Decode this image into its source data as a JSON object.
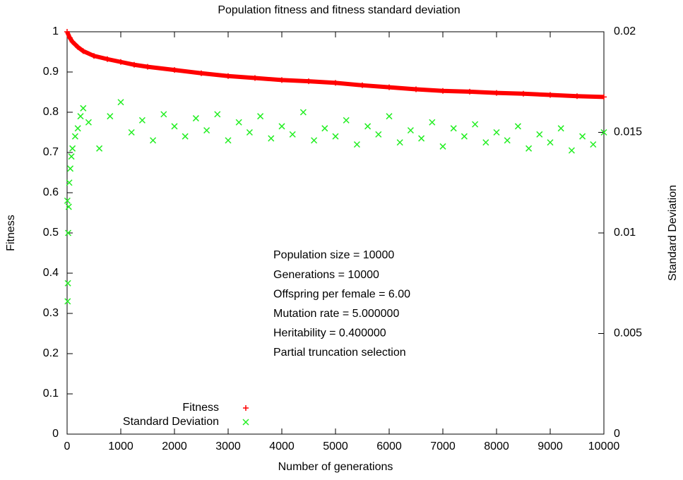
{
  "chart_data": {
    "type": "scatter",
    "title": "Population fitness and fitness standard deviation",
    "x_label": "Number of generations",
    "y_label": "Fitness",
    "y2_label": "Standard Deviation",
    "xlim": [
      0,
      10000
    ],
    "xticks": [
      0,
      1000,
      2000,
      3000,
      4000,
      5000,
      6000,
      7000,
      8000,
      9000,
      10000
    ],
    "ylim": [
      0,
      1
    ],
    "yticks": [
      0,
      0.1,
      0.2,
      0.3,
      0.4,
      0.5,
      0.6,
      0.7,
      0.8,
      0.9,
      1
    ],
    "y2lim": [
      0,
      0.02
    ],
    "y2ticks": [
      0,
      0.005,
      0.01,
      0.015,
      0.02
    ],
    "annotations": [
      "Population size = 10000",
      "Generations = 10000",
      "Offspring per female = 6.00",
      "Mutation rate = 5.000000",
      "Heritability = 0.400000",
      "Partial truncation selection"
    ],
    "series": [
      {
        "name": "Fitness",
        "color": "#ff0000",
        "marker": "+",
        "x": [
          0,
          50,
          100,
          200,
          300,
          500,
          750,
          1000,
          1250,
          1500,
          2000,
          2500,
          3000,
          3500,
          4000,
          4500,
          5000,
          5500,
          6000,
          6500,
          7000,
          7500,
          8000,
          8500,
          9000,
          9500,
          10000
        ],
        "values": [
          1.0,
          0.985,
          0.975,
          0.962,
          0.952,
          0.94,
          0.932,
          0.925,
          0.918,
          0.913,
          0.905,
          0.897,
          0.89,
          0.885,
          0.88,
          0.877,
          0.873,
          0.867,
          0.862,
          0.857,
          0.853,
          0.851,
          0.848,
          0.846,
          0.843,
          0.84,
          0.838
        ]
      },
      {
        "name": "Standard Deviation",
        "color": "#22ee22",
        "marker": "x",
        "axis": "y2",
        "x": [
          5,
          10,
          15,
          20,
          30,
          40,
          60,
          80,
          100,
          150,
          200,
          250,
          300,
          400,
          600,
          800,
          1000,
          1200,
          1400,
          1600,
          1800,
          2000,
          2200,
          2400,
          2600,
          2800,
          3000,
          3200,
          3400,
          3600,
          3800,
          4000,
          4200,
          4400,
          4600,
          4800,
          5000,
          5200,
          5400,
          5600,
          5800,
          6000,
          6200,
          6400,
          6600,
          6800,
          7000,
          7200,
          7400,
          7600,
          7800,
          8000,
          8200,
          8400,
          8600,
          8800,
          9000,
          9200,
          9400,
          9600,
          9800,
          10000
        ],
        "values": [
          0.0116,
          0.0066,
          0.0075,
          0.01,
          0.0113,
          0.0125,
          0.0132,
          0.0138,
          0.0142,
          0.0148,
          0.0152,
          0.0158,
          0.0162,
          0.0155,
          0.0142,
          0.0158,
          0.0165,
          0.015,
          0.0156,
          0.0146,
          0.0159,
          0.0153,
          0.0148,
          0.0157,
          0.0151,
          0.0159,
          0.0146,
          0.0155,
          0.015,
          0.0158,
          0.0147,
          0.0153,
          0.0149,
          0.016,
          0.0146,
          0.0152,
          0.0148,
          0.0156,
          0.0144,
          0.0153,
          0.0149,
          0.0158,
          0.0145,
          0.0151,
          0.0147,
          0.0155,
          0.0143,
          0.0152,
          0.0148,
          0.0154,
          0.0145,
          0.015,
          0.0146,
          0.0153,
          0.0142,
          0.0149,
          0.0145,
          0.0152,
          0.0141,
          0.0148,
          0.0144,
          0.015
        ]
      }
    ]
  }
}
